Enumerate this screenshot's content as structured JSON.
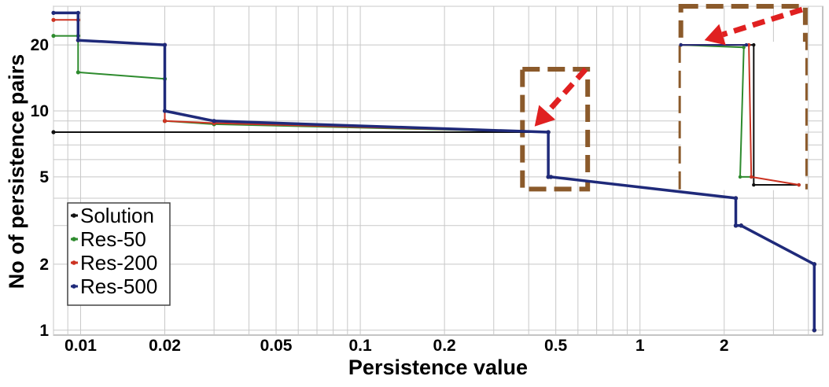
{
  "chart_data": {
    "type": "line",
    "title": "",
    "xlabel": "Persistence value",
    "ylabel": "No of persistence pairs",
    "xscale": "log",
    "yscale": "log",
    "xlim": [
      0.008,
      4.5
    ],
    "ylim": [
      0.95,
      30
    ],
    "grid": true,
    "legend_position": "bottom-left",
    "x_ticks": [
      {
        "value": 0.01,
        "label": "0.01"
      },
      {
        "value": 0.02,
        "label": "0.02"
      },
      {
        "value": 0.05,
        "label": "0.05"
      },
      {
        "value": 0.1,
        "label": "0.1"
      },
      {
        "value": 0.2,
        "label": "0.2"
      },
      {
        "value": 0.5,
        "label": "0.5"
      },
      {
        "value": 1,
        "label": "1"
      },
      {
        "value": 2,
        "label": "2"
      }
    ],
    "y_ticks": [
      {
        "value": 1,
        "label": "1"
      },
      {
        "value": 2,
        "label": "2"
      },
      {
        "value": 5,
        "label": "5"
      },
      {
        "value": 10,
        "label": "10"
      },
      {
        "value": 20,
        "label": "20"
      }
    ],
    "series": [
      {
        "name": "Solution",
        "color": "#111111",
        "width": 2,
        "points": [
          [
            0.008,
            8
          ],
          [
            0.47,
            8
          ],
          [
            0.47,
            5
          ],
          [
            0.48,
            5
          ],
          [
            2.2,
            4
          ],
          [
            2.2,
            3
          ],
          [
            2.3,
            3
          ],
          [
            4.2,
            2
          ],
          [
            4.2,
            1
          ]
        ]
      },
      {
        "name": "Res-50",
        "color": "#2e8b2e",
        "width": 2,
        "points": [
          [
            0.008,
            22
          ],
          [
            0.0098,
            22
          ],
          [
            0.0098,
            15
          ],
          [
            0.02,
            14
          ],
          [
            0.02,
            9
          ],
          [
            0.03,
            8.7
          ],
          [
            0.47,
            8
          ],
          [
            0.47,
            5
          ],
          [
            0.48,
            5
          ],
          [
            2.2,
            4
          ],
          [
            2.2,
            3
          ],
          [
            2.3,
            3
          ],
          [
            4.2,
            2
          ],
          [
            4.2,
            1
          ]
        ]
      },
      {
        "name": "Res-200",
        "color": "#cc3322",
        "width": 2,
        "points": [
          [
            0.008,
            26
          ],
          [
            0.0098,
            26
          ],
          [
            0.0098,
            21
          ],
          [
            0.02,
            20
          ],
          [
            0.02,
            9
          ],
          [
            0.03,
            8.8
          ],
          [
            0.47,
            8
          ],
          [
            0.47,
            5
          ],
          [
            0.48,
            5
          ],
          [
            2.2,
            4
          ],
          [
            2.2,
            3
          ],
          [
            2.3,
            3
          ],
          [
            4.2,
            2
          ],
          [
            4.2,
            1
          ]
        ]
      },
      {
        "name": "Res-500",
        "color": "#1f2a7a",
        "width": 3.5,
        "points": [
          [
            0.008,
            28
          ],
          [
            0.0098,
            28
          ],
          [
            0.0098,
            21
          ],
          [
            0.02,
            20
          ],
          [
            0.02,
            10
          ],
          [
            0.03,
            9
          ],
          [
            0.47,
            8
          ],
          [
            0.47,
            5
          ],
          [
            0.48,
            5
          ],
          [
            2.2,
            4
          ],
          [
            2.2,
            3
          ],
          [
            2.3,
            3
          ],
          [
            4.2,
            2
          ],
          [
            4.2,
            1
          ]
        ]
      }
    ],
    "inset": {
      "box": {
        "x": [
          1.4,
          3.9
        ],
        "y": [
          4.5,
          20
        ]
      },
      "series": [
        {
          "name": "Solution",
          "color": "#111111",
          "width": 2,
          "points": [
            [
              1.4,
              20
            ],
            [
              2.55,
              20
            ],
            [
              2.55,
              4.6
            ],
            [
              3.7,
              4.6
            ]
          ]
        },
        {
          "name": "Res-50",
          "color": "#2e8b2e",
          "width": 2,
          "points": [
            [
              1.4,
              20
            ],
            [
              2.35,
              19.5
            ],
            [
              2.28,
              5
            ],
            [
              2.5,
              5
            ]
          ]
        },
        {
          "name": "Res-200",
          "color": "#cc3322",
          "width": 2,
          "points": [
            [
              1.4,
              20
            ],
            [
              2.45,
              20
            ],
            [
              2.5,
              5
            ],
            [
              3.7,
              4.6
            ]
          ]
        },
        {
          "name": "Res-500",
          "color": "#1f2a7a",
          "width": 2,
          "points": [
            [
              1.4,
              20
            ],
            [
              2.4,
              20
            ]
          ]
        }
      ]
    },
    "annotations": {
      "highlight_color": "#8b5a2b",
      "arrow_color": "#e02020",
      "boxes": [
        {
          "x": [
            0.38,
            0.65
          ],
          "y": [
            4.4,
            15.5
          ]
        },
        {
          "x": [
            1.4,
            3.9
          ],
          "y": [
            4.5,
            31
          ]
        }
      ],
      "arrows": [
        {
          "from": [
            0.64,
            15.5
          ],
          "to": [
            0.42,
            8.5
          ]
        },
        {
          "from": [
            3.8,
            29
          ],
          "to": [
            1.7,
            21
          ]
        }
      ]
    }
  }
}
